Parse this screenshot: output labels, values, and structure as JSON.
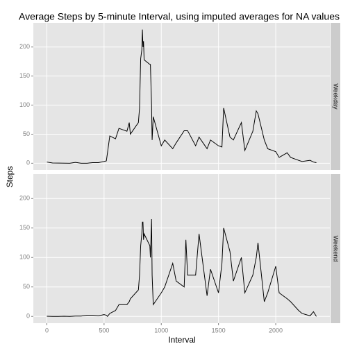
{
  "chart_data": {
    "type": "line",
    "title": "Average Steps by 5-minute Interval, using imputed averages for NA values",
    "xlabel": "Interval",
    "ylabel": "Steps",
    "facet": "rows",
    "grid": true,
    "xlim": [
      -118,
      2473
    ],
    "ylim": [
      -11.5,
      241.5
    ],
    "xticks": [
      0,
      500,
      1000,
      1500,
      2000
    ],
    "yticks": [
      0,
      50,
      100,
      150,
      200
    ],
    "x": [
      0,
      50,
      100,
      150,
      200,
      250,
      300,
      350,
      400,
      450,
      500,
      520,
      530,
      550,
      600,
      630,
      700,
      720,
      730,
      800,
      810,
      820,
      830,
      835,
      840,
      845,
      850,
      900,
      905,
      915,
      920,
      930,
      1000,
      1030,
      1100,
      1130,
      1200,
      1215,
      1230,
      1300,
      1330,
      1400,
      1430,
      1500,
      1530,
      1545,
      1600,
      1630,
      1700,
      1730,
      1800,
      1830,
      1845,
      1900,
      1930,
      2000,
      2030,
      2100,
      2130,
      2200,
      2230,
      2300,
      2330,
      2355
    ],
    "series": [
      {
        "name": "Weekday",
        "color": "#000000",
        "values": [
          2,
          0.5,
          0.3,
          0.2,
          0,
          1.5,
          0,
          0,
          1,
          1,
          3,
          4,
          18,
          47,
          42,
          60,
          55,
          70,
          50,
          70,
          95,
          180,
          195,
          230,
          200,
          210,
          178,
          170,
          170,
          100,
          40,
          80,
          30,
          40,
          25,
          35,
          56,
          56,
          56,
          30,
          45,
          25,
          40,
          30,
          28,
          95,
          45,
          40,
          70,
          22,
          55,
          90,
          85,
          40,
          25,
          20,
          10,
          18,
          10,
          5,
          3,
          5,
          2,
          1
        ]
      },
      {
        "name": "Weekend",
        "color": "#000000",
        "values": [
          0.2,
          0,
          0,
          0.2,
          0,
          0.5,
          0.5,
          2,
          2,
          1,
          3,
          2,
          0,
          5,
          10,
          20,
          20,
          25,
          30,
          45,
          70,
          120,
          140,
          160,
          160,
          130,
          140,
          120,
          100,
          165,
          70,
          20,
          40,
          50,
          90,
          60,
          50,
          130,
          70,
          70,
          140,
          35,
          80,
          40,
          90,
          150,
          110,
          60,
          100,
          40,
          70,
          100,
          125,
          25,
          40,
          85,
          40,
          30,
          25,
          10,
          5,
          1,
          8,
          0
        ]
      }
    ]
  }
}
